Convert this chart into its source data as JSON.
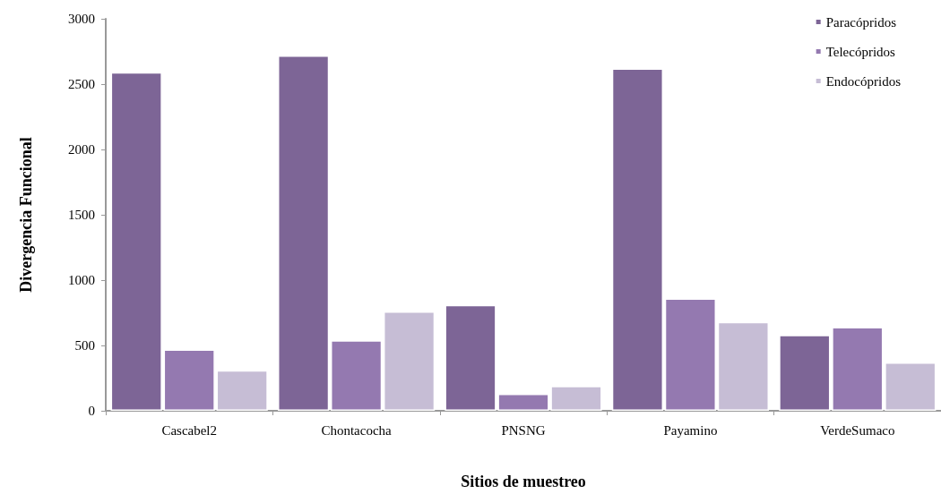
{
  "chart_data": {
    "type": "bar",
    "xlabel": "Sitios de muestreo",
    "ylabel": "Divergencia Funcional",
    "categories": [
      "Cascabel2",
      "Chontacocha",
      "PNSNG",
      "Payamino",
      "VerdeSumaco"
    ],
    "series": [
      {
        "name": "Paracópridos",
        "color": "#7d6596",
        "values": [
          2590,
          2720,
          810,
          2620,
          580
        ]
      },
      {
        "name": "Telecópridos",
        "color": "#9479b0",
        "values": [
          470,
          540,
          130,
          860,
          640
        ]
      },
      {
        "name": "Endocópridos",
        "color": "#c6bdd5",
        "values": [
          310,
          760,
          190,
          680,
          370
        ]
      }
    ],
    "ylim": [
      0,
      3000
    ],
    "yticks": [
      0,
      500,
      1000,
      1500,
      2000,
      2500,
      3000
    ],
    "grid": false,
    "legend": "top right"
  }
}
